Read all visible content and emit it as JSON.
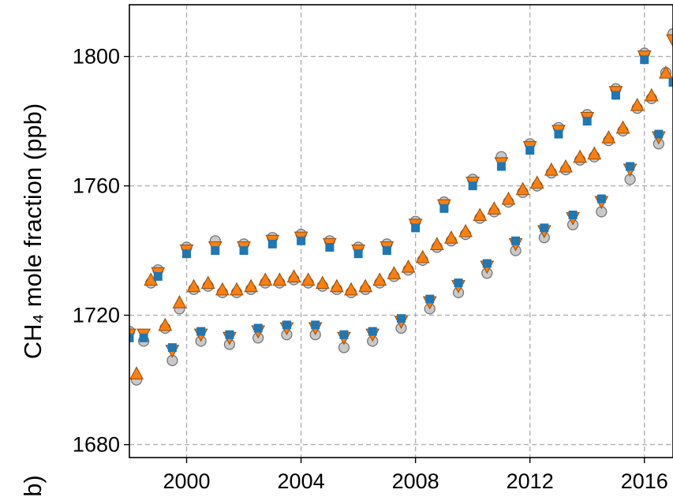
{
  "chart_data": {
    "type": "scatter",
    "title": "",
    "xlabel": "",
    "ylabel": "CH₄ mole fraction (ppb)",
    "xlim": [
      1998.0,
      2017.0
    ],
    "ylim": [
      1676,
      1816
    ],
    "x_ticks": [
      2000,
      2004,
      2008,
      2012,
      2016
    ],
    "y_ticks": [
      1680,
      1720,
      1760,
      1800
    ],
    "x_tick_labels": [
      "2000",
      "2004",
      "2008",
      "2012",
      "2016"
    ],
    "y_tick_labels": [
      "1680",
      "1720",
      "1760",
      "1800"
    ],
    "grid": true,
    "legend": "none",
    "edge_label_fragment": "b)",
    "series": [
      {
        "marker": "circle",
        "color": "#c0c0c0",
        "edge": "#707070",
        "x": [
          1998.0,
          1998.25,
          1998.5,
          1998.75,
          1999.0,
          1999.25,
          1999.5,
          1999.75,
          2000.0,
          2000.25,
          2000.5,
          2000.75,
          2001.0,
          2001.25,
          2001.5,
          2001.75,
          2002.0,
          2002.25,
          2002.5,
          2002.75,
          2003.0,
          2003.25,
          2003.5,
          2003.75,
          2004.0,
          2004.25,
          2004.5,
          2004.75,
          2005.0,
          2005.25,
          2005.5,
          2005.75,
          2006.0,
          2006.25,
          2006.5,
          2006.75,
          2007.0,
          2007.25,
          2007.5,
          2007.75,
          2008.0,
          2008.25,
          2008.5,
          2008.75,
          2009.0,
          2009.25,
          2009.5,
          2009.75,
          2010.0,
          2010.25,
          2010.5,
          2010.75,
          2011.0,
          2011.25,
          2011.5,
          2011.75,
          2012.0,
          2012.25,
          2012.5,
          2012.75,
          2013.0,
          2013.25,
          2013.5,
          2013.75,
          2014.0,
          2014.25,
          2014.5,
          2014.75,
          2015.0,
          2015.25,
          2015.5,
          2015.75,
          2016.0,
          2016.25,
          2016.5,
          2016.75,
          2017.0
        ],
        "y": [
          1715,
          1700,
          1712,
          1730,
          1734,
          1716,
          1706,
          1722,
          1741,
          1728,
          1712,
          1729,
          1743,
          1727,
          1711,
          1727,
          1742,
          1728,
          1713,
          1730,
          1744,
          1730,
          1714,
          1731,
          1745,
          1730,
          1714,
          1729,
          1743,
          1728,
          1710,
          1727,
          1741,
          1728,
          1712,
          1730,
          1742,
          1732,
          1716,
          1734,
          1749,
          1737,
          1722,
          1741,
          1755,
          1743,
          1727,
          1745,
          1762,
          1750,
          1733,
          1752,
          1769,
          1755,
          1740,
          1758,
          1773,
          1760,
          1744,
          1764,
          1778,
          1765,
          1748,
          1768,
          1782,
          1769,
          1752,
          1774,
          1790,
          1777,
          1762,
          1784,
          1801,
          1787,
          1773,
          1795,
          1807
        ]
      },
      {
        "marker": "triangle",
        "color": "#ff7f0e",
        "edge": "#a05008",
        "x": [
          1998.0,
          1998.25,
          1998.5,
          1998.75,
          1999.0,
          1999.25,
          1999.5,
          1999.75,
          2000.0,
          2000.25,
          2000.5,
          2000.75,
          2001.0,
          2001.25,
          2001.5,
          2001.75,
          2002.0,
          2002.25,
          2002.5,
          2002.75,
          2003.0,
          2003.25,
          2003.5,
          2003.75,
          2004.0,
          2004.25,
          2004.5,
          2004.75,
          2005.0,
          2005.25,
          2005.5,
          2005.75,
          2006.0,
          2006.25,
          2006.5,
          2006.75,
          2007.0,
          2007.25,
          2007.5,
          2007.75,
          2008.0,
          2008.25,
          2008.5,
          2008.75,
          2009.0,
          2009.25,
          2009.5,
          2009.75,
          2010.0,
          2010.25,
          2010.5,
          2010.75,
          2011.0,
          2011.25,
          2011.5,
          2011.75,
          2012.0,
          2012.25,
          2012.5,
          2012.75,
          2013.0,
          2013.25,
          2013.5,
          2013.75,
          2014.0,
          2014.25,
          2014.5,
          2014.75,
          2015.0,
          2015.25,
          2015.5,
          2015.75,
          2016.0,
          2016.25,
          2016.5,
          2016.75,
          2017.0
        ],
        "y": [
          1714,
          1702,
          1714,
          1731,
          1733,
          1717,
          1709,
          1724,
          1740,
          1729,
          1714,
          1730,
          1741,
          1728,
          1713,
          1728,
          1741,
          1729,
          1715,
          1731,
          1743,
          1731,
          1716,
          1732,
          1744,
          1731,
          1716,
          1730,
          1742,
          1729,
          1713,
          1728,
          1740,
          1729,
          1714,
          1731,
          1741,
          1733,
          1718,
          1735,
          1748,
          1738,
          1724,
          1742,
          1754,
          1744,
          1729,
          1746,
          1761,
          1751,
          1735,
          1753,
          1767,
          1756,
          1742,
          1759,
          1772,
          1761,
          1746,
          1765,
          1777,
          1766,
          1750,
          1769,
          1781,
          1770,
          1755,
          1775,
          1789,
          1778,
          1765,
          1785,
          1800,
          1788,
          1775,
          1795,
          1805
        ]
      },
      {
        "marker": "square",
        "color": "#1f77b4",
        "edge": "#1f77b4",
        "x": [
          1998.0,
          1998.5,
          1999.0,
          1999.5,
          2000.0,
          2000.5,
          2001.0,
          2001.5,
          2002.0,
          2002.5,
          2003.0,
          2003.5,
          2004.0,
          2004.5,
          2005.0,
          2005.5,
          2006.0,
          2006.5,
          2007.0,
          2007.5,
          2008.0,
          2008.5,
          2009.0,
          2009.5,
          2010.0,
          2010.5,
          2011.0,
          2011.5,
          2012.0,
          2012.5,
          2013.0,
          2013.5,
          2014.0,
          2014.5,
          2015.0,
          2015.5,
          2016.0,
          2016.5,
          2017.0
        ],
        "y": [
          1713,
          1713,
          1732,
          1710,
          1739,
          1715,
          1740,
          1714,
          1740,
          1716,
          1742,
          1717,
          1743,
          1717,
          1741,
          1714,
          1739,
          1715,
          1740,
          1719,
          1747,
          1725,
          1753,
          1730,
          1760,
          1736,
          1766,
          1743,
          1771,
          1747,
          1776,
          1751,
          1780,
          1756,
          1788,
          1766,
          1799,
          1776,
          1792
        ]
      }
    ]
  }
}
